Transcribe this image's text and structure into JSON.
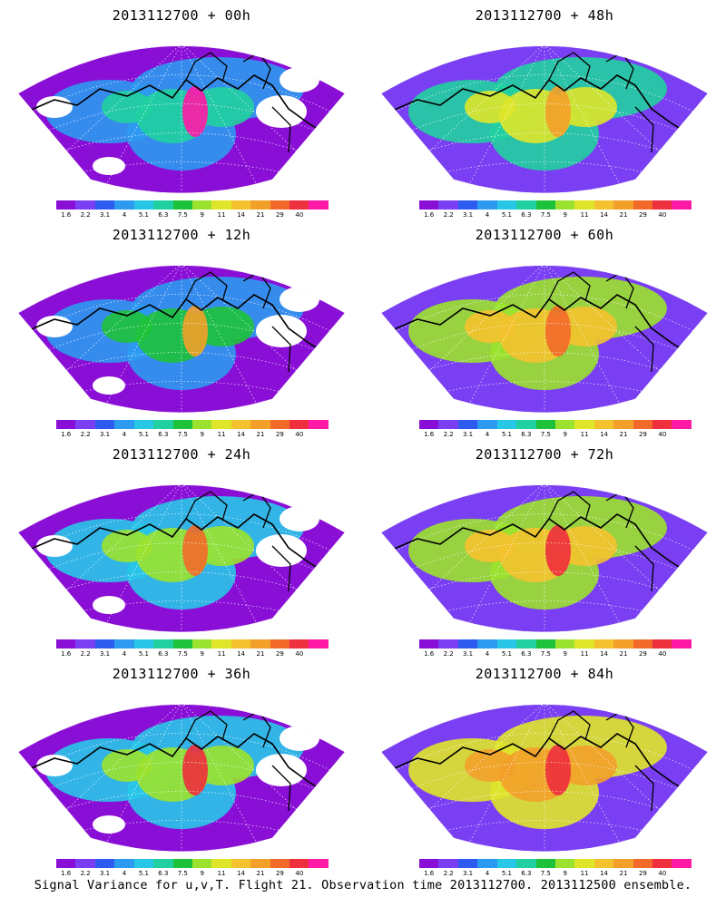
{
  "colorbar": {
    "colors": [
      "#8a0fd6",
      "#7a3ff2",
      "#2d5bf0",
      "#2c9af0",
      "#28c7e8",
      "#21d0a0",
      "#1ec23a",
      "#9be22e",
      "#dfe62a",
      "#f4c22e",
      "#f3a02a",
      "#f26a2a",
      "#ee2f3d",
      "#ff1aa6"
    ],
    "ticks": [
      "1.6",
      "2.2",
      "3.1",
      "4",
      "5.1",
      "6.3",
      "7.5",
      "9",
      "11",
      "14",
      "21",
      "29",
      "40"
    ]
  },
  "panels": [
    {
      "title": "2013112700 + 00h"
    },
    {
      "title": "2013112700 + 48h"
    },
    {
      "title": "2013112700 + 12h"
    },
    {
      "title": "2013112700 + 60h"
    },
    {
      "title": "2013112700 + 24h"
    },
    {
      "title": "2013112700 + 72h"
    },
    {
      "title": "2013112700 + 36h"
    },
    {
      "title": "2013112700 + 84h"
    }
  ],
  "footer": "Signal Variance for u,v,T. Flight 21. Observation time 2013112700. 2013112500 ensemble."
}
